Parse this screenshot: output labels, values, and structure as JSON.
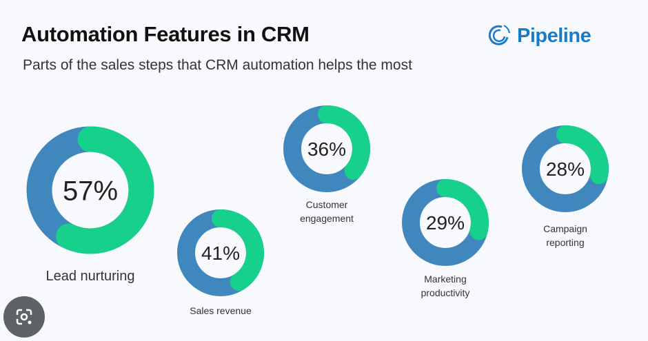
{
  "title": "Automation Features in CRM",
  "subtitle": "Parts of the sales steps that CRM automation helps the most",
  "logo": {
    "text": "Pipeline",
    "icon": "pipeline-swirl-icon"
  },
  "colors": {
    "remainder": "#3f87bd",
    "value": "#17d08b",
    "text": "#222222"
  },
  "chart_data": {
    "type": "donut",
    "title": "Automation Features in CRM",
    "subtitle": "Parts of the sales steps that CRM automation helps the most",
    "items": [
      {
        "label": "Lead nurturing",
        "lines": [
          "Lead nurturing"
        ],
        "value": 57,
        "display": "57%"
      },
      {
        "label": "Sales revenue",
        "lines": [
          "Sales revenue"
        ],
        "value": 41,
        "display": "41%"
      },
      {
        "label": "Customer engagement",
        "lines": [
          "Customer",
          "engagement"
        ],
        "value": 36,
        "display": "36%"
      },
      {
        "label": "Marketing productivity",
        "lines": [
          "Marketing",
          "productivity"
        ],
        "value": 29,
        "display": "29%"
      },
      {
        "label": "Campaign reporting",
        "lines": [
          "Campaign",
          "reporting"
        ],
        "value": 28,
        "display": "28%"
      }
    ]
  }
}
